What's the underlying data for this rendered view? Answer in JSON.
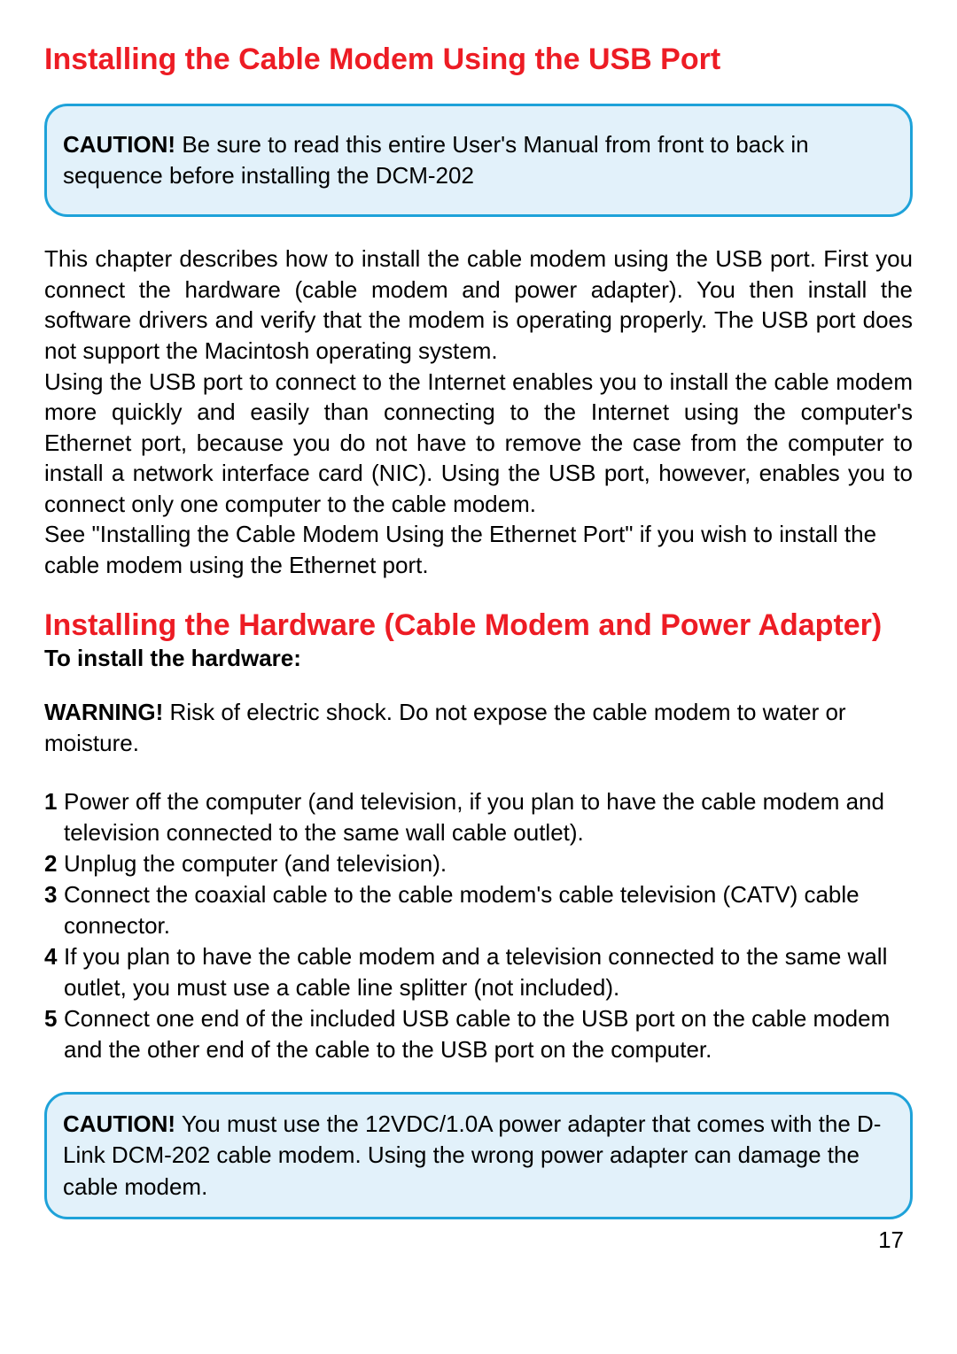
{
  "colors": {
    "heading_red": "#ed1c24",
    "box_border": "#1ea2d9",
    "box_fill": "#e2f1fa",
    "text": "#000000",
    "background": "#ffffff"
  },
  "typography": {
    "heading_fontsize": 34,
    "body_fontsize": 26,
    "sub_bold_fontsize": 26,
    "page_num_fontsize": 26,
    "font_family": "Arial, Helvetica, sans-serif"
  },
  "heading1": "Installing the Cable Modem Using the USB Port",
  "caution1": {
    "label": "CAUTION!",
    "text": " Be sure to read this entire User's Manual from front to back in sequence before installing the DCM-202"
  },
  "intro_para": "This chapter describes how to install the cable modem using the USB port. First you connect the hardware (cable modem and power adapter). You then install the software drivers and verify that the modem is operating properly. The USB port does not support the Macintosh operating system.",
  "intro_para2": "Using the USB port to connect to the Internet enables you to install the cable modem more quickly and easily than connecting to the Internet using the computer's Ethernet port, because you do not have to remove the case from the computer to install a network interface card (NIC). Using the USB port, however, enables you to connect only one computer to the cable modem.",
  "intro_para3": "See \"Installing the Cable Modem Using the Ethernet Port\" if you wish to install the cable modem using the Ethernet port.",
  "heading2": "Installing the Hardware (Cable Modem and Power Adapter)",
  "sub_bold": "To install the hardware:",
  "warning": {
    "label": "WARNING!",
    "text": " Risk of electric shock. Do not expose the cable modem to water or moisture."
  },
  "steps": [
    {
      "num": "1",
      "text": "Power off the computer (and television, if you plan to have the cable modem and television connected to the same wall cable outlet)."
    },
    {
      "num": "2",
      "text": "Unplug the computer (and television)."
    },
    {
      "num": "3",
      "text": "Connect the coaxial cable to the cable modem's cable television (CATV) cable connector."
    },
    {
      "num": "4",
      "text": "If you plan to have the cable modem and a television connected to the same wall outlet, you must use a cable line splitter (not included)."
    },
    {
      "num": "5",
      "text": "Connect one end of the included USB cable to the USB port on the cable modem and the other end of the cable to the USB port on the computer."
    }
  ],
  "caution2": {
    "label": "CAUTION!",
    "text": " You must use the 12VDC/1.0A power adapter that comes with the D-Link DCM-202 cable modem. Using the wrong power adapter can damage the cable modem."
  },
  "page_number": "17"
}
